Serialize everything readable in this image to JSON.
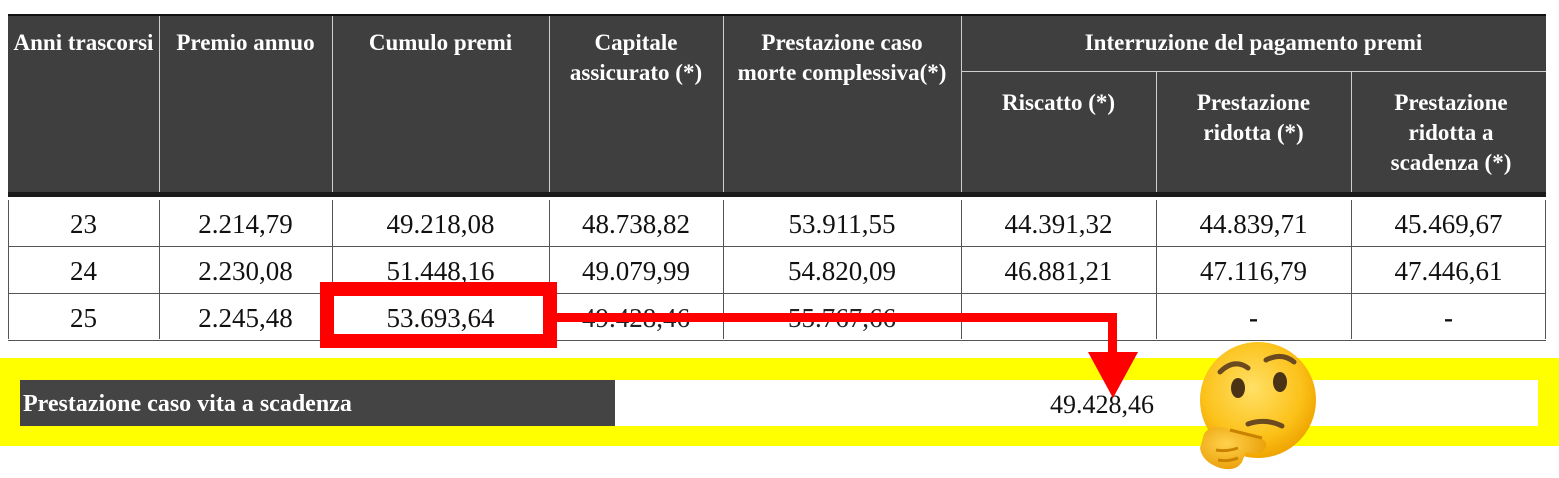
{
  "table": {
    "headers": {
      "anni": "Anni trascorsi",
      "premio": "Premio annuo",
      "cumulo": "Cumulo premi",
      "capitale": "Capitale assicurato (*)",
      "morte": "Prestazione caso morte complessiva(*)",
      "interruzione": "Interruzione del pagamento premi",
      "riscatto": "Riscatto (*)",
      "ridotta": "Prestazione ridotta (*)",
      "ridotta_scadenza": "Prestazione ridotta a scadenza (*)"
    },
    "rows": [
      {
        "anni": "23",
        "premio": "2.214,79",
        "cumulo": "49.218,08",
        "capitale": "48.738,82",
        "morte": "53.911,55",
        "riscatto": "44.391,32",
        "ridotta": "44.839,71",
        "ridotta_scadenza": "45.469,67"
      },
      {
        "anni": "24",
        "premio": "2.230,08",
        "cumulo": "51.448,16",
        "capitale": "49.079,99",
        "morte": "54.820,09",
        "riscatto": "46.881,21",
        "ridotta": "47.116,79",
        "ridotta_scadenza": "47.446,61"
      },
      {
        "anni": "25",
        "premio": "2.245,48",
        "cumulo": "53.693,64",
        "capitale": "49.428,46",
        "morte": "55.767,66",
        "riscatto": "",
        "ridotta": "-",
        "ridotta_scadenza": "-"
      }
    ]
  },
  "summary": {
    "label": "Prestazione caso vita a scadenza",
    "value": "49.428,46"
  },
  "annotation": {
    "highlight_color": "#ff0000",
    "band_color": "#ffff00",
    "emoji": "thinking-face-icon"
  }
}
